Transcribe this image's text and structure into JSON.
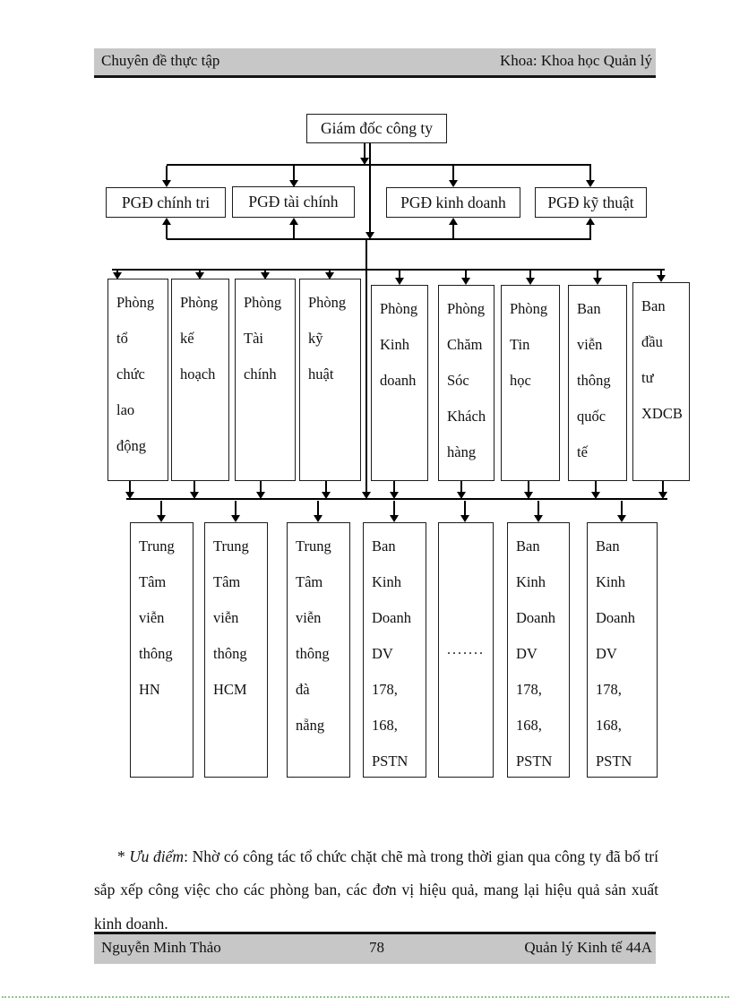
{
  "header": {
    "left": "Chuyên đề thực tập",
    "right": "Khoa: Khoa học Quản lý"
  },
  "chart": {
    "director": "Giám đốc công ty",
    "deputies": [
      "PGĐ chính tri",
      "PGĐ tài chính",
      "PGĐ kinh doanh",
      "PGĐ kỹ thuật"
    ],
    "departments": [
      "Phòng\ntổ\nchức\nlao\nđộng",
      "Phòng\nkế\nhoạch",
      "Phòng\nTài\nchính",
      "Phòng\nkỹ\nhuật",
      "Phòng\nKinh\ndoanh",
      "Phòng\nChăm\nSóc\nKhách\nhàng",
      "Phòng\nTin\nhọc",
      "Ban\nviễn\nthông\nquốc\ntế",
      "Ban\nđầu\ntư\nXDCB"
    ],
    "units": [
      "Trung\nTâm\nviễn\nthông\nHN",
      "Trung\nTâm\nviễn\nthông\nHCM",
      "Trung\nTâm\nviễn\nthông\nđà\nnẵng",
      "Ban\nKinh\nDoanh\nDV\n178,\n168,\nPSTN",
      ".......",
      "Ban\nKinh\nDoanh\nDV\n178,\n168,\nPSTN",
      "Ban\nKinh\nDoanh\nDV\n178,\n168,\nPSTN"
    ]
  },
  "paragraph": {
    "marker": "* ",
    "term": "Ưu điểm",
    "rest": ": Nhờ có công tác tổ chức chặt chẽ mà trong thời gian qua công ty đã bố trí sắp xếp công việc cho các phòng ban, các đơn vị hiệu quả, mang lại hiệu quả sản xuất kinh doanh."
  },
  "footer": {
    "author": "Nguyễn Minh Thảo",
    "page_number": "78",
    "class_name": "Quản lý Kinh tế 44A"
  },
  "colors": {
    "band_background": "#c7c7c7",
    "line_color": "#000000",
    "dotted_rule_green": "#8fc68f"
  }
}
